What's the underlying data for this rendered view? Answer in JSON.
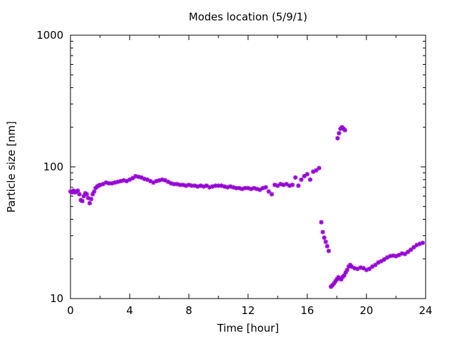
{
  "chart_data": {
    "type": "scatter",
    "title": "Modes location (5/9/1)",
    "xlabel": "Time [hour]",
    "ylabel": "Particle size [nm]",
    "xlim": [
      0,
      24
    ],
    "ylim": [
      10,
      1000
    ],
    "yscale": "log",
    "x_ticks": [
      "0",
      "4",
      "8",
      "12",
      "16",
      "20",
      "24"
    ],
    "y_ticks": [
      "10",
      "100",
      "1000"
    ],
    "grid": false,
    "marker_color": "#9400d3",
    "series": [
      {
        "x": [
          0.0,
          0.1,
          0.2,
          0.3,
          0.4,
          0.5,
          0.6,
          0.7,
          0.8,
          0.9,
          1.0,
          1.1,
          1.2,
          1.3,
          1.4,
          1.5,
          1.6,
          1.7,
          1.8,
          1.9,
          2.0,
          2.2,
          2.4,
          2.6,
          2.8,
          3.0,
          3.2,
          3.4,
          3.6,
          3.8,
          4.0,
          4.2,
          4.4,
          4.6,
          4.8,
          5.0,
          5.2,
          5.4,
          5.6,
          5.8,
          6.0,
          6.2,
          6.4,
          6.6,
          6.8,
          7.0,
          7.2,
          7.4,
          7.6,
          7.8,
          8.0,
          8.2,
          8.4,
          8.6,
          8.8,
          9.0,
          9.2,
          9.4,
          9.6,
          9.8,
          10.0,
          10.2,
          10.4,
          10.6,
          10.8,
          11.0,
          11.2,
          11.4,
          11.6,
          11.8,
          12.0,
          12.2,
          12.4,
          12.6,
          12.8,
          13.0,
          13.2,
          13.4,
          13.6,
          13.8,
          14.0,
          14.2,
          14.4,
          14.6,
          14.8,
          15.0,
          15.2,
          15.4,
          15.6,
          15.8,
          16.0,
          16.2,
          16.4,
          16.6,
          16.8
        ],
        "y": [
          65,
          64,
          66,
          64,
          65,
          66,
          62,
          56,
          55,
          60,
          63,
          62,
          58,
          53,
          57,
          62,
          65,
          69,
          71,
          72,
          73,
          74,
          76,
          75,
          75,
          76,
          77,
          78,
          79,
          78,
          80,
          82,
          85,
          84,
          83,
          81,
          80,
          78,
          76,
          78,
          79,
          80,
          79,
          77,
          75,
          74,
          74,
          73,
          73,
          72,
          73,
          72,
          72,
          71,
          72,
          71,
          72,
          70,
          71,
          72,
          72,
          72,
          71,
          70,
          71,
          70,
          69,
          69,
          68,
          69,
          69,
          68,
          69,
          68,
          67,
          69,
          70,
          65,
          62,
          73,
          72,
          74,
          73,
          74,
          72,
          73,
          83,
          72,
          80,
          85,
          88,
          80,
          92,
          94,
          98
        ],
        "name": ""
      },
      {
        "x": [
          16.95,
          17.05,
          17.15,
          17.25,
          17.35,
          17.45
        ],
        "y": [
          38,
          32,
          29,
          27,
          25,
          23
        ],
        "name": ""
      },
      {
        "x": [
          17.6,
          17.7,
          17.8,
          17.9,
          18.0,
          18.1,
          18.2,
          18.3,
          18.4,
          18.5,
          18.6,
          18.7,
          18.8,
          18.9,
          19.0,
          19.2,
          19.4,
          19.6,
          19.8,
          20.0,
          20.2,
          20.4,
          20.6,
          20.8,
          21.0,
          21.2,
          21.4,
          21.6,
          21.8,
          22.0,
          22.2,
          22.4,
          22.6,
          22.8,
          23.0,
          23.2,
          23.4,
          23.6,
          23.8
        ],
        "y": [
          12.3,
          12.6,
          13.0,
          13.5,
          14.0,
          14.5,
          14.2,
          14.0,
          14.6,
          15.0,
          15.8,
          16.5,
          17.5,
          18.0,
          17.5,
          17.0,
          16.8,
          17.2,
          17.0,
          16.5,
          16.8,
          17.5,
          18.0,
          18.8,
          19.2,
          19.8,
          20.5,
          21.0,
          21.2,
          21.0,
          21.4,
          22.0,
          21.8,
          22.6,
          23.5,
          24.5,
          25.5,
          26.0,
          26.5
        ],
        "name": ""
      },
      {
        "x": [
          18.05,
          18.15,
          18.25,
          18.35,
          18.45,
          18.55
        ],
        "y": [
          165,
          180,
          195,
          200,
          195,
          190
        ],
        "name": ""
      }
    ]
  }
}
